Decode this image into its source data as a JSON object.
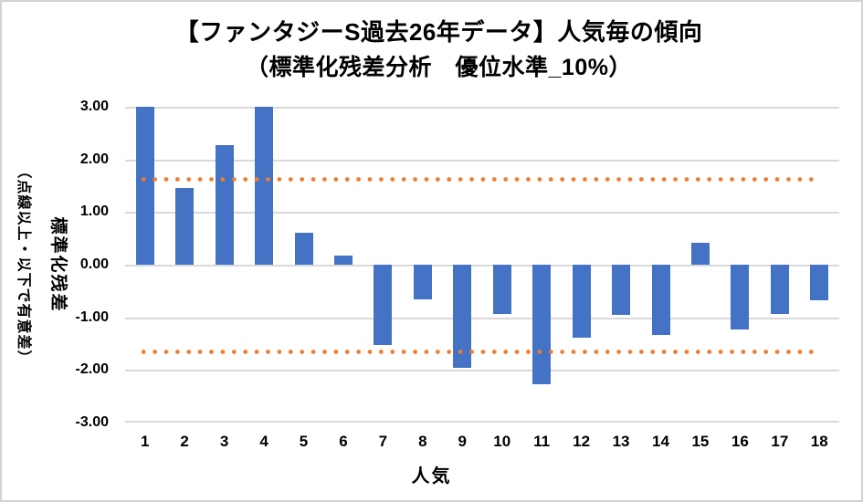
{
  "title": {
    "line1": "【ファンタジーS過去26年データ】人気毎の傾向",
    "line2": "（標準化残差分析　優位水準_10%）"
  },
  "chart_data": {
    "type": "bar",
    "title": "【ファンタジーS過去26年データ】人気毎の傾向（標準化残差分析　優位水準_10%）",
    "categories": [
      "1",
      "2",
      "3",
      "4",
      "5",
      "6",
      "7",
      "8",
      "9",
      "10",
      "11",
      "12",
      "13",
      "14",
      "15",
      "16",
      "17",
      "18"
    ],
    "values": [
      3.0,
      1.45,
      2.28,
      3.0,
      0.6,
      0.17,
      -1.52,
      -0.66,
      -1.96,
      -0.94,
      -2.28,
      -1.39,
      -0.96,
      -1.33,
      0.42,
      -1.23,
      -0.93,
      -0.68
    ],
    "xlabel": "人気",
    "ylabel_main": "標準化残差",
    "ylabel_sub": "（点線以上・以下で有意差）",
    "ylim": [
      -3,
      3
    ],
    "ytick_step": 1,
    "ytick_labels": [
      "3.00",
      "2.00",
      "1.00",
      "0.00",
      "-1.00",
      "-2.00",
      "-3.00"
    ],
    "threshold_lines": {
      "upper": 1.64,
      "lower": -1.64,
      "style": "dotted"
    },
    "colors": {
      "bar": "#4472C4",
      "threshold": "#ED7D31",
      "gridline": "#D9D9D9",
      "text": "#000000"
    },
    "grid": true,
    "legend": "none"
  }
}
